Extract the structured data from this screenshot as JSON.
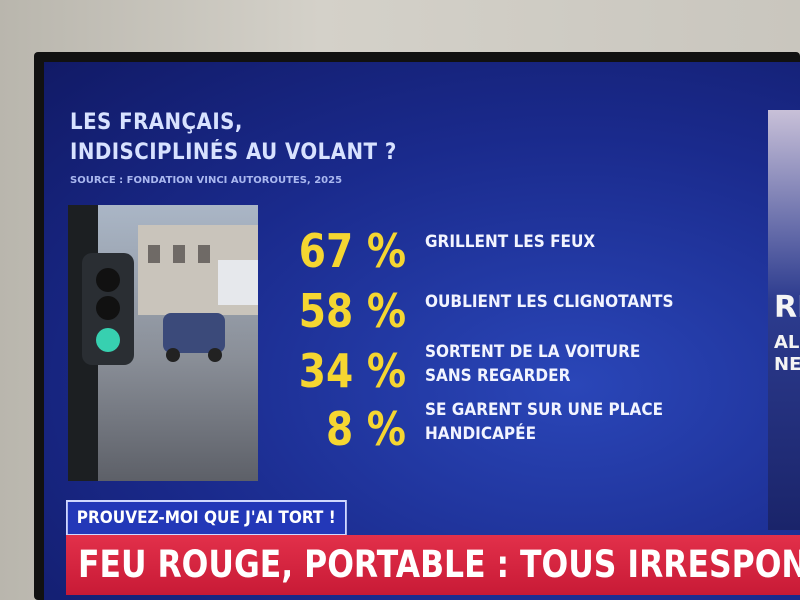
{
  "header": {
    "title_lines": [
      "LES FRANÇAIS,",
      "INDISCIPLINÉS AU VOLANT ?"
    ],
    "source": "SOURCE : FONDATION VINCI AUTOROUTES, 2025"
  },
  "stats": [
    {
      "value": "67 %",
      "label_lines": [
        "GRILLENT LES FEUX"
      ]
    },
    {
      "value": "58 %",
      "label_lines": [
        "OUBLIENT LES CLIGNOTANTS"
      ]
    },
    {
      "value": "34 %",
      "label_lines": [
        "SORTENT DE LA VOITURE",
        "SANS REGARDER"
      ]
    },
    {
      "value": "8 %",
      "label_lines": [
        "SE GARENT SUR UNE PLACE",
        "HANDICAPÉE"
      ]
    }
  ],
  "side_fragments": [
    "RE",
    "AL",
    "NEI"
  ],
  "show_name": "PROUVEZ-MOI QUE J'AI TORT !",
  "headline": "FEU ROUGE, PORTABLE : TOUS IRRESPONSAB"
}
